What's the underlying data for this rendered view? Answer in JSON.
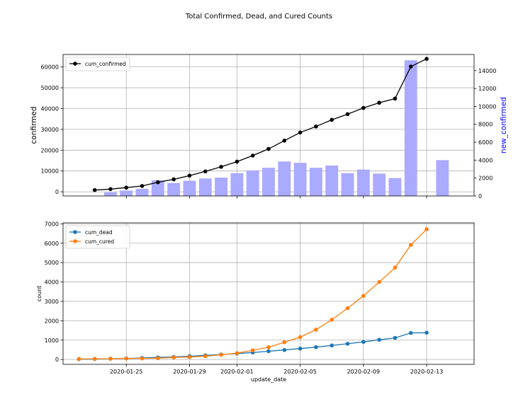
{
  "figure": {
    "title": "Total Confirmed, Dead, and Cured Counts"
  },
  "colors": {
    "confirmed_line": "#000000",
    "bars": "#aaaaff",
    "dead": "#1f77b4",
    "cured": "#ff7f0e",
    "right_axis_label": "#0000ff"
  },
  "chart_data": [
    {
      "type": "bar",
      "secondary_type": "line",
      "x": [
        "2020-01-23",
        "2020-01-24",
        "2020-01-25",
        "2020-01-26",
        "2020-01-27",
        "2020-01-28",
        "2020-01-29",
        "2020-01-30",
        "2020-01-31",
        "2020-02-01",
        "2020-02-02",
        "2020-02-03",
        "2020-02-04",
        "2020-02-05",
        "2020-02-06",
        "2020-02-07",
        "2020-02-08",
        "2020-02-09",
        "2020-02-10",
        "2020-02-11",
        "2020-02-12",
        "2020-02-13",
        "2020-02-14"
      ],
      "series": [
        {
          "name": "cum_confirmed",
          "axis": "left",
          "style": "line",
          "values": [
            830,
            1290,
            2000,
            2800,
            4600,
            6000,
            7800,
            9800,
            12000,
            14500,
            17400,
            20600,
            24600,
            28500,
            31400,
            34600,
            37300,
            40300,
            42800,
            44800,
            60200,
            63900,
            null
          ]
        },
        {
          "name": "",
          "axis": "right",
          "style": "bar",
          "values": [
            null,
            400,
            600,
            800,
            1750,
            1450,
            1700,
            1950,
            2050,
            2550,
            2850,
            3150,
            3850,
            3700,
            3150,
            3400,
            2550,
            2950,
            2500,
            2000,
            15150,
            null,
            4000
          ]
        }
      ],
      "xlim": [
        "2020-01-21",
        "2020-02-16"
      ],
      "ylim_left": [
        -2000,
        66000
      ],
      "ylim_right": [
        0,
        15800
      ],
      "yticks_left": [
        0,
        10000,
        20000,
        30000,
        40000,
        50000,
        60000
      ],
      "yticks_right": [
        0,
        2000,
        4000,
        6000,
        8000,
        10000,
        12000,
        14000
      ],
      "xticks": [
        "2020-01-25",
        "2020-01-29",
        "2020-02-01",
        "2020-02-05",
        "2020-02-09",
        "2020-02-13"
      ],
      "ylabel_left": "confirmed",
      "ylabel_right": "new_confirmed",
      "legend": [
        "cum_confirmed"
      ],
      "legend_position": "top-left",
      "grid": true
    },
    {
      "type": "line",
      "x": [
        "2020-01-22",
        "2020-01-23",
        "2020-01-24",
        "2020-01-25",
        "2020-01-26",
        "2020-01-27",
        "2020-01-28",
        "2020-01-29",
        "2020-01-30",
        "2020-01-31",
        "2020-02-01",
        "2020-02-02",
        "2020-02-03",
        "2020-02-04",
        "2020-02-05",
        "2020-02-06",
        "2020-02-07",
        "2020-02-08",
        "2020-02-09",
        "2020-02-10",
        "2020-02-11",
        "2020-02-12",
        "2020-02-13",
        "2020-02-14"
      ],
      "series": [
        {
          "name": "cum_dead",
          "values": [
            17,
            25,
            41,
            56,
            80,
            106,
            132,
            170,
            213,
            259,
            304,
            361,
            425,
            490,
            563,
            637,
            723,
            812,
            909,
            1017,
            1114,
            1370,
            1383,
            null
          ]
        },
        {
          "name": "cum_cured",
          "values": [
            28,
            34,
            38,
            49,
            56,
            63,
            107,
            126,
            171,
            243,
            328,
            475,
            632,
            892,
            1153,
            1540,
            2050,
            2649,
            3281,
            3996,
            4740,
            5911,
            6723,
            null
          ]
        }
      ],
      "xlim": [
        "2020-01-21",
        "2020-02-16"
      ],
      "ylim": [
        -250,
        7050
      ],
      "yticks": [
        0,
        1000,
        2000,
        3000,
        4000,
        5000,
        6000,
        7000
      ],
      "xticks": [
        "2020-01-25",
        "2020-01-29",
        "2020-02-01",
        "2020-02-05",
        "2020-02-09",
        "2020-02-13"
      ],
      "xlabel": "update_date",
      "ylabel": "count",
      "legend": [
        "cum_dead",
        "cum_cured"
      ],
      "legend_position": "top-left",
      "grid": true
    }
  ]
}
